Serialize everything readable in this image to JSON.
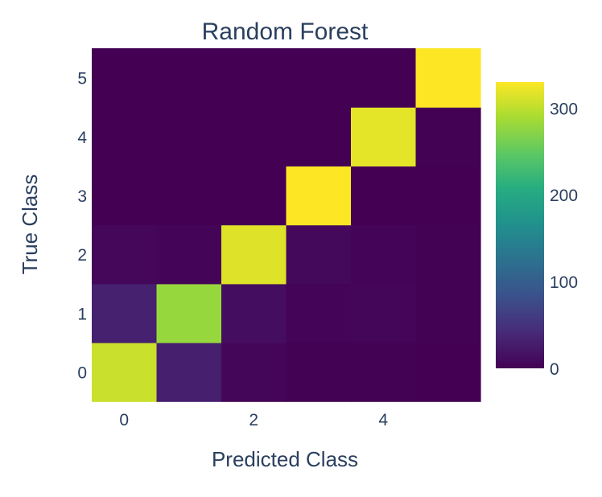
{
  "chart_data": {
    "type": "heatmap",
    "title": "Random Forest",
    "xlabel": "Predicted Class",
    "ylabel": "True Class",
    "x_categories": [
      0,
      1,
      2,
      3,
      4,
      5
    ],
    "y_categories": [
      0,
      1,
      2,
      3,
      4,
      5
    ],
    "x_tick_labels": [
      "0",
      "2",
      "4"
    ],
    "y_tick_labels": [
      "0",
      "1",
      "2",
      "3",
      "4",
      "5"
    ],
    "z": [
      [
        305,
        30,
        5,
        1,
        1,
        0
      ],
      [
        32,
        280,
        12,
        3,
        5,
        1
      ],
      [
        6,
        4,
        315,
        8,
        3,
        1
      ],
      [
        0,
        0,
        0,
        330,
        0,
        0
      ],
      [
        0,
        0,
        0,
        0,
        318,
        1
      ],
      [
        0,
        0,
        0,
        0,
        0,
        330
      ]
    ],
    "colorscale": "Viridis",
    "zmin": 0,
    "zmax": 330,
    "colorbar": {
      "tick_values": [
        0,
        100,
        200,
        300
      ],
      "tick_labels": [
        "0",
        "100",
        "200",
        "300"
      ]
    }
  }
}
